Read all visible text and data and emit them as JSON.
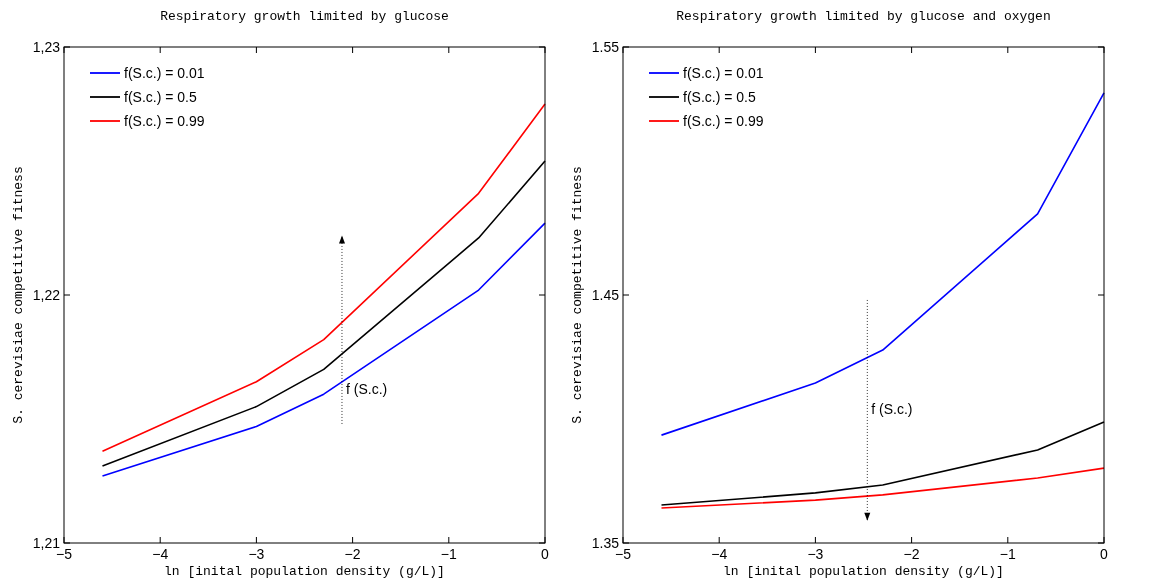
{
  "chart_data": [
    {
      "type": "line",
      "title": "Respiratory growth limited by glucose",
      "xlabel": "ln [inital population density (g/L)]",
      "ylabel": "S. cerevisiae competitive fitness",
      "x": [
        -4.6,
        -3.0,
        -2.3,
        -0.69,
        0
      ],
      "series": [
        {
          "name": "f(S.c.) = 0.01",
          "color": "#0000ff",
          "values": [
            1.2127,
            1.2147,
            1.216,
            1.2202,
            1.2229
          ]
        },
        {
          "name": "f(S.c.) = 0.5",
          "color": "#000000",
          "values": [
            1.2131,
            1.2155,
            1.217,
            1.2223,
            1.2254
          ]
        },
        {
          "name": "f(S.c.) = 0.99",
          "color": "#ff0000",
          "values": [
            1.2137,
            1.2165,
            1.2182,
            1.2241,
            1.2277
          ]
        }
      ],
      "xlim": [
        -5,
        0
      ],
      "xticks": [
        {
          "value": -5,
          "label": "−5"
        },
        {
          "value": -4,
          "label": "−4"
        },
        {
          "value": -3,
          "label": "−3"
        },
        {
          "value": -2,
          "label": "−2"
        },
        {
          "value": -1,
          "label": "−1"
        },
        0
      ],
      "ylim": [
        1.21,
        1.23
      ],
      "yticks": [
        {
          "value": 1.21,
          "label": "1,21"
        },
        {
          "value": 1.22,
          "label": "1,22"
        },
        {
          "value": 1.23,
          "label": "1,23"
        }
      ],
      "annotations": [
        "f (S.c.)"
      ],
      "legend": "top left",
      "grid": false
    },
    {
      "type": "line",
      "title": "Respiratory growth limited by glucose and oxygen",
      "xlabel": "ln [inital population density (g/L)]",
      "ylabel": "S. cerevisiae competitive fitness",
      "x": [
        -4.6,
        -3.0,
        -2.3,
        -0.69,
        0
      ],
      "series": [
        {
          "name": "f(S.c.) = 0.01",
          "color": "#0000ff",
          "values": [
            1.3935,
            1.4145,
            1.4278,
            1.4827,
            1.5315
          ]
        },
        {
          "name": "f(S.c.) = 0.5",
          "color": "#000000",
          "values": [
            1.3653,
            1.3702,
            1.3734,
            1.3875,
            1.3988
          ]
        },
        {
          "name": "f(S.c.) = 0.99",
          "color": "#ff0000",
          "values": [
            1.3641,
            1.3673,
            1.3694,
            1.3762,
            1.3802
          ]
        }
      ],
      "xlim": [
        -5,
        0
      ],
      "xticks": [
        {
          "value": -5,
          "label": "−5"
        },
        {
          "value": -4,
          "label": "−4"
        },
        {
          "value": -3,
          "label": "−3"
        },
        {
          "value": -2,
          "label": "−2"
        },
        {
          "value": -1,
          "label": "−1"
        },
        0
      ],
      "ylim": [
        1.35,
        1.55
      ],
      "yticks": [
        1.35,
        1.45,
        1.55
      ],
      "annotations": [
        "f (S.c.)"
      ],
      "legend": "top left",
      "grid": false
    }
  ]
}
